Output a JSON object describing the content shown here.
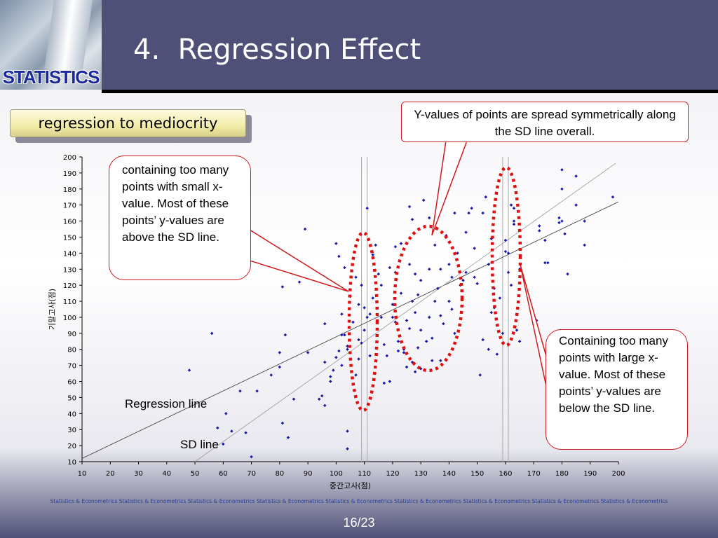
{
  "header": {
    "logo_text": "STATISTICS",
    "title": "4.  Regression Effect"
  },
  "subtitle": "regression to mediocrity",
  "callouts": {
    "top": "Y-values of points are spread symmetrically along the SD line overall.",
    "left": "containing too many points with small x-value. Most of these points’ y-values are above the SD line.",
    "right": "Containing too many points with large x-value. Most of these points’ y-values are below the SD line."
  },
  "labels": {
    "regression_line": "Regression line",
    "sd_line": "SD line"
  },
  "footer": {
    "band_text": "Statistics & Econometrics Statistics & Econometrics Statistics & Econometrics Statistics & Econometrics Statistics & Econometrics Statistics & Econometrics Statistics & Econometrics Statistics & Econometrics Statistics & Econometrics",
    "page_number": "16/23"
  },
  "colors": {
    "header_bg": "#4f5077",
    "callout_border": "#d0191e",
    "ellipse": "#e01010",
    "point": "#1a1aa8"
  },
  "chart_data": {
    "type": "scatter",
    "xlabel": "중간고사(점)",
    "ylabel": "기말고사(점)",
    "xlim": [
      10,
      200
    ],
    "ylim": [
      10,
      200
    ],
    "xticks": [
      10,
      20,
      30,
      40,
      50,
      60,
      70,
      80,
      90,
      100,
      110,
      120,
      130,
      140,
      150,
      160,
      170,
      180,
      190,
      200
    ],
    "yticks": [
      10,
      20,
      30,
      40,
      50,
      60,
      70,
      80,
      90,
      100,
      110,
      120,
      130,
      140,
      150,
      160,
      170,
      180,
      190,
      200
    ],
    "grid": false,
    "lines": [
      {
        "name": "Regression line",
        "x": [
          10,
          200
        ],
        "y": [
          12,
          172
        ]
      },
      {
        "name": "SD line",
        "x": [
          50,
          199
        ],
        "y": [
          10,
          196
        ]
      }
    ],
    "vertical_reference_lines": [
      109,
      111,
      159,
      161
    ],
    "points": [
      [
        48,
        67
      ],
      [
        56,
        90
      ],
      [
        58,
        31
      ],
      [
        60,
        21
      ],
      [
        61,
        40
      ],
      [
        63,
        29
      ],
      [
        66,
        54
      ],
      [
        68,
        28
      ],
      [
        70,
        13
      ],
      [
        72,
        54
      ],
      [
        77,
        64
      ],
      [
        80,
        78
      ],
      [
        80,
        69
      ],
      [
        81,
        34
      ],
      [
        81,
        119
      ],
      [
        82,
        89
      ],
      [
        83,
        25
      ],
      [
        85,
        49
      ],
      [
        87,
        122
      ],
      [
        89,
        155
      ],
      [
        90,
        78
      ],
      [
        94,
        49
      ],
      [
        95,
        51
      ],
      [
        96,
        45
      ],
      [
        96,
        96
      ],
      [
        96,
        72
      ],
      [
        98,
        60
      ],
      [
        98,
        63
      ],
      [
        99,
        67
      ],
      [
        100,
        75
      ],
      [
        100,
        146
      ],
      [
        101,
        79
      ],
      [
        101,
        138
      ],
      [
        102,
        89
      ],
      [
        102,
        70
      ],
      [
        102,
        102
      ],
      [
        103,
        89
      ],
      [
        103,
        131
      ],
      [
        104,
        18
      ],
      [
        104,
        29
      ],
      [
        104,
        80
      ],
      [
        104,
        82
      ],
      [
        105,
        113
      ],
      [
        106,
        97
      ],
      [
        107,
        64
      ],
      [
        107,
        125
      ],
      [
        108,
        74
      ],
      [
        108,
        86
      ],
      [
        108,
        108
      ],
      [
        109,
        84
      ],
      [
        109,
        120
      ],
      [
        110,
        92
      ],
      [
        110,
        106
      ],
      [
        111,
        100
      ],
      [
        111,
        168
      ],
      [
        112,
        76
      ],
      [
        112,
        102
      ],
      [
        113,
        112
      ],
      [
        113,
        139
      ],
      [
        114,
        145
      ],
      [
        115,
        127
      ],
      [
        116,
        120
      ],
      [
        116,
        100
      ],
      [
        117,
        59
      ],
      [
        117,
        83
      ],
      [
        118,
        76
      ],
      [
        119,
        60
      ],
      [
        119,
        131
      ],
      [
        120,
        100
      ],
      [
        120,
        108
      ],
      [
        121,
        97
      ],
      [
        121,
        128
      ],
      [
        121,
        144
      ],
      [
        122,
        79
      ],
      [
        122,
        85
      ],
      [
        123,
        115
      ],
      [
        123,
        146
      ],
      [
        124,
        78
      ],
      [
        124,
        80
      ],
      [
        125,
        69
      ],
      [
        125,
        98
      ],
      [
        126,
        93
      ],
      [
        126,
        133
      ],
      [
        126,
        169
      ],
      [
        127,
        72
      ],
      [
        127,
        110
      ],
      [
        127,
        161
      ],
      [
        128,
        66
      ],
      [
        128,
        103
      ],
      [
        128,
        127
      ],
      [
        129,
        81
      ],
      [
        129,
        114
      ],
      [
        130,
        68
      ],
      [
        130,
        92
      ],
      [
        130,
        123
      ],
      [
        131,
        173
      ],
      [
        132,
        85
      ],
      [
        133,
        100
      ],
      [
        133,
        130
      ],
      [
        133,
        162
      ],
      [
        134,
        87
      ],
      [
        134,
        73
      ],
      [
        135,
        110
      ],
      [
        135,
        145
      ],
      [
        136,
        118
      ],
      [
        137,
        73
      ],
      [
        137,
        101
      ],
      [
        137,
        130
      ],
      [
        138,
        96
      ],
      [
        139,
        151
      ],
      [
        140,
        110
      ],
      [
        140,
        133
      ],
      [
        141,
        105
      ],
      [
        141,
        125
      ],
      [
        142,
        90
      ],
      [
        142,
        165
      ],
      [
        143,
        140
      ],
      [
        144,
        120
      ],
      [
        145,
        123
      ],
      [
        146,
        128
      ],
      [
        146,
        153
      ],
      [
        147,
        165
      ],
      [
        148,
        168
      ],
      [
        149,
        125
      ],
      [
        149,
        143
      ],
      [
        150,
        121
      ],
      [
        151,
        64
      ],
      [
        152,
        86
      ],
      [
        152,
        165
      ],
      [
        153,
        175
      ],
      [
        154,
        80
      ],
      [
        154,
        133
      ],
      [
        155,
        103
      ],
      [
        155,
        149
      ],
      [
        156,
        106
      ],
      [
        156,
        118
      ],
      [
        157,
        95
      ],
      [
        157,
        77
      ],
      [
        158,
        112
      ],
      [
        159,
        90
      ],
      [
        160,
        148
      ],
      [
        160,
        141
      ],
      [
        161,
        128
      ],
      [
        161,
        140
      ],
      [
        162,
        120
      ],
      [
        162,
        170
      ],
      [
        163,
        158
      ],
      [
        163,
        160
      ],
      [
        163,
        168
      ],
      [
        164,
        92
      ],
      [
        165,
        85
      ],
      [
        165,
        130
      ],
      [
        171,
        98
      ],
      [
        172,
        154
      ],
      [
        172,
        157
      ],
      [
        174,
        134
      ],
      [
        174,
        148
      ],
      [
        175,
        134
      ],
      [
        179,
        159
      ],
      [
        179,
        162
      ],
      [
        180,
        160
      ],
      [
        180,
        180
      ],
      [
        180,
        192
      ],
      [
        181,
        152
      ],
      [
        182,
        127
      ],
      [
        185,
        170
      ],
      [
        185,
        188
      ],
      [
        188,
        145
      ],
      [
        188,
        160
      ],
      [
        198,
        175
      ]
    ]
  }
}
